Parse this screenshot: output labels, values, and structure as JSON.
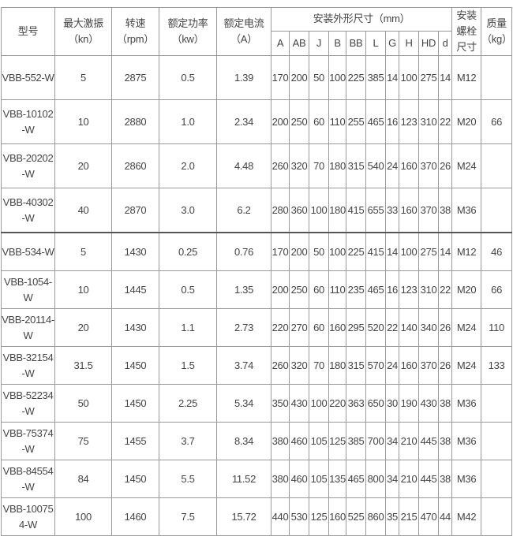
{
  "header": {
    "model": "型号",
    "max_force": "最大激振",
    "max_force_unit": "（kn）",
    "speed": "转速",
    "speed_unit": "（rpm）",
    "power": "额定功率",
    "power_unit": "（kw）",
    "current": "额定电流",
    "current_unit": "（A）",
    "dimensions": "安装外形尺寸（mm）",
    "dim_cols": [
      "A",
      "AB",
      "J",
      "B",
      "BB",
      "L",
      "G",
      "H",
      "HD",
      "d"
    ],
    "bolt": "安装螺栓尺寸",
    "mass": "质量",
    "mass_unit": "（kg）"
  },
  "rows": [
    {
      "model": "VBB-552-W",
      "force": "5",
      "speed": "2875",
      "power": "0.5",
      "current": "1.39",
      "dims": [
        "170",
        "200",
        "50",
        "100",
        "225",
        "385",
        "14",
        "100",
        "275",
        "14"
      ],
      "bolt": "M12",
      "mass": ""
    },
    {
      "model": "VBB-10102-W",
      "force": "10",
      "speed": "2880",
      "power": "1.0",
      "current": "2.34",
      "dims": [
        "200",
        "250",
        "60",
        "110",
        "255",
        "465",
        "16",
        "123",
        "310",
        "22"
      ],
      "bolt": "M20",
      "mass": "66"
    },
    {
      "model": "VBB-20202-W",
      "force": "20",
      "speed": "2860",
      "power": "2.0",
      "current": "4.48",
      "dims": [
        "260",
        "320",
        "70",
        "180",
        "315",
        "540",
        "24",
        "160",
        "370",
        "26"
      ],
      "bolt": "M24",
      "mass": ""
    },
    {
      "model": "VBB-40302-W",
      "force": "40",
      "speed": "2870",
      "power": "3.0",
      "current": "6.2",
      "dims": [
        "280",
        "360",
        "100",
        "180",
        "415",
        "655",
        "33",
        "160",
        "370",
        "38"
      ],
      "bolt": "M36",
      "mass": ""
    },
    {
      "model": "VBB-534-W",
      "force": "5",
      "speed": "1430",
      "power": "0.25",
      "current": "0.76",
      "dims": [
        "170",
        "200",
        "50",
        "100",
        "225",
        "415",
        "14",
        "100",
        "275",
        "14"
      ],
      "bolt": "M12",
      "mass": "46"
    },
    {
      "model": "VBB-1054-W",
      "force": "10",
      "speed": "1445",
      "power": "0.5",
      "current": "1.35",
      "dims": [
        "200",
        "250",
        "60",
        "110",
        "235",
        "465",
        "16",
        "123",
        "310",
        "22"
      ],
      "bolt": "M20",
      "mass": "66"
    },
    {
      "model": "VBB-20114-W",
      "force": "20",
      "speed": "1430",
      "power": "1.1",
      "current": "2.73",
      "dims": [
        "220",
        "270",
        "60",
        "160",
        "295",
        "520",
        "22",
        "140",
        "340",
        "26"
      ],
      "bolt": "M24",
      "mass": "110"
    },
    {
      "model": "VBB-32154-W",
      "force": "31.5",
      "speed": "1450",
      "power": "1.5",
      "current": "3.74",
      "dims": [
        "260",
        "320",
        "70",
        "180",
        "315",
        "570",
        "24",
        "160",
        "370",
        "26"
      ],
      "bolt": "M24",
      "mass": "133"
    },
    {
      "model": "VBB-52234-W",
      "force": "50",
      "speed": "1450",
      "power": "2.25",
      "current": "5.34",
      "dims": [
        "350",
        "430",
        "100",
        "220",
        "363",
        "650",
        "30",
        "190",
        "430",
        "38"
      ],
      "bolt": "M36",
      "mass": ""
    },
    {
      "model": "VBB-75374-W",
      "force": "75",
      "speed": "1455",
      "power": "3.7",
      "current": "8.34",
      "dims": [
        "380",
        "460",
        "105",
        "125",
        "385",
        "700",
        "34",
        "210",
        "445",
        "38"
      ],
      "bolt": "M36",
      "mass": ""
    },
    {
      "model": "VBB-84554-W",
      "force": "84",
      "speed": "1450",
      "power": "5.5",
      "current": "11.52",
      "dims": [
        "380",
        "460",
        "105",
        "135",
        "465",
        "800",
        "34",
        "210",
        "445",
        "38"
      ],
      "bolt": "M36",
      "mass": ""
    },
    {
      "model": "VBB-100754-W",
      "force": "100",
      "speed": "1460",
      "power": "7.5",
      "current": "15.72",
      "dims": [
        "440",
        "530",
        "125",
        "160",
        "525",
        "860",
        "35",
        "215",
        "470",
        "44"
      ],
      "bolt": "M42",
      "mass": ""
    }
  ]
}
